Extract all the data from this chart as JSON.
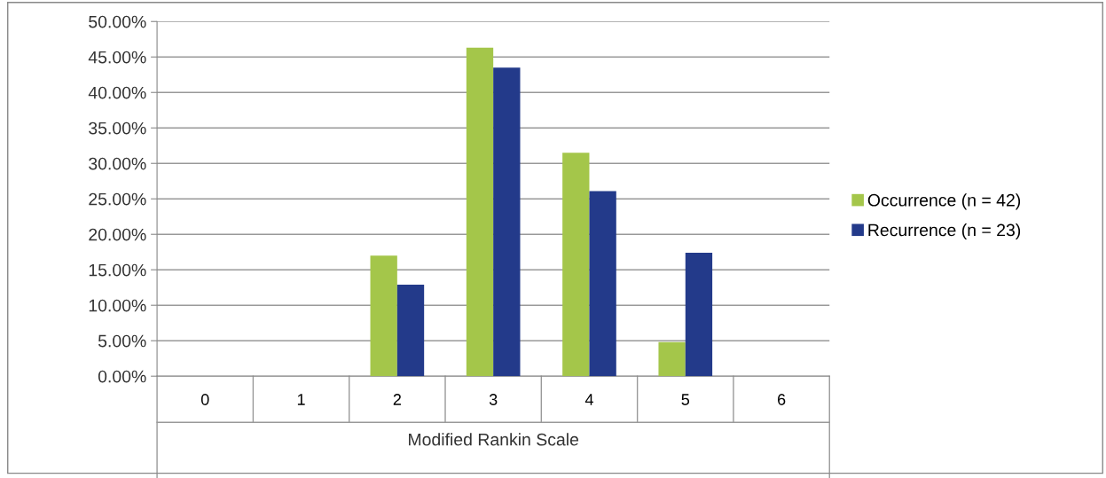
{
  "chart_data": {
    "type": "bar",
    "xlabel": "Modified Rankin Scale",
    "categories": [
      "0",
      "1",
      "2",
      "3",
      "4",
      "5",
      "6"
    ],
    "series": [
      {
        "name": "Occurrence (n = 42)",
        "color": "#a4c64a",
        "values": [
          0,
          0,
          17.0,
          46.3,
          31.5,
          4.8,
          0
        ]
      },
      {
        "name": "Recurrence (n = 23)",
        "color": "#233a8a",
        "values": [
          0,
          0,
          12.9,
          43.5,
          26.1,
          17.4,
          0
        ]
      }
    ],
    "ylim": [
      0,
      50
    ],
    "yticks": [
      {
        "value": 0,
        "label": "0.00%"
      },
      {
        "value": 5,
        "label": "5.00%"
      },
      {
        "value": 10,
        "label": "10.00%"
      },
      {
        "value": 15,
        "label": "15.00%"
      },
      {
        "value": 20,
        "label": "20.00%"
      },
      {
        "value": 25,
        "label": "25.00%"
      },
      {
        "value": 30,
        "label": "30.00%"
      },
      {
        "value": 35,
        "label": "35.00%"
      },
      {
        "value": 40,
        "label": "40.00%"
      },
      {
        "value": 45,
        "label": "45.00%"
      },
      {
        "value": 50,
        "label": "50.00%"
      }
    ],
    "grid": "y",
    "legend": "right"
  }
}
